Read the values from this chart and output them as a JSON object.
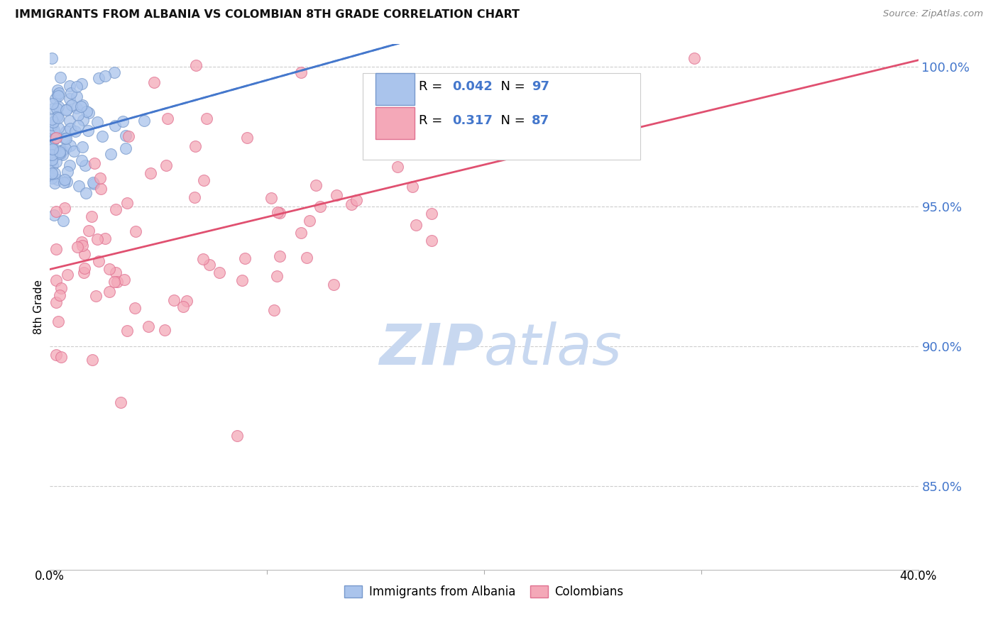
{
  "title": "IMMIGRANTS FROM ALBANIA VS COLOMBIAN 8TH GRADE CORRELATION CHART",
  "source": "Source: ZipAtlas.com",
  "ylabel": "8th Grade",
  "xlim": [
    0.0,
    0.4
  ],
  "ylim": [
    0.82,
    1.008
  ],
  "albania_color": "#aac4ec",
  "albania_edge": "#7799cc",
  "colombia_color": "#f4a8b8",
  "colombia_edge": "#e07090",
  "albania_R": 0.042,
  "albania_N": 97,
  "colombia_R": 0.317,
  "colombia_N": 87,
  "trendline_albania_color": "#4477cc",
  "trendline_colombia_color": "#e05070",
  "watermark_zip": "ZIP",
  "watermark_atlas": "atlas",
  "watermark_color": "#c8d8f0",
  "legend_text_color": "#4477cc",
  "ytick_color": "#4477cc",
  "grid_color": "#cccccc"
}
